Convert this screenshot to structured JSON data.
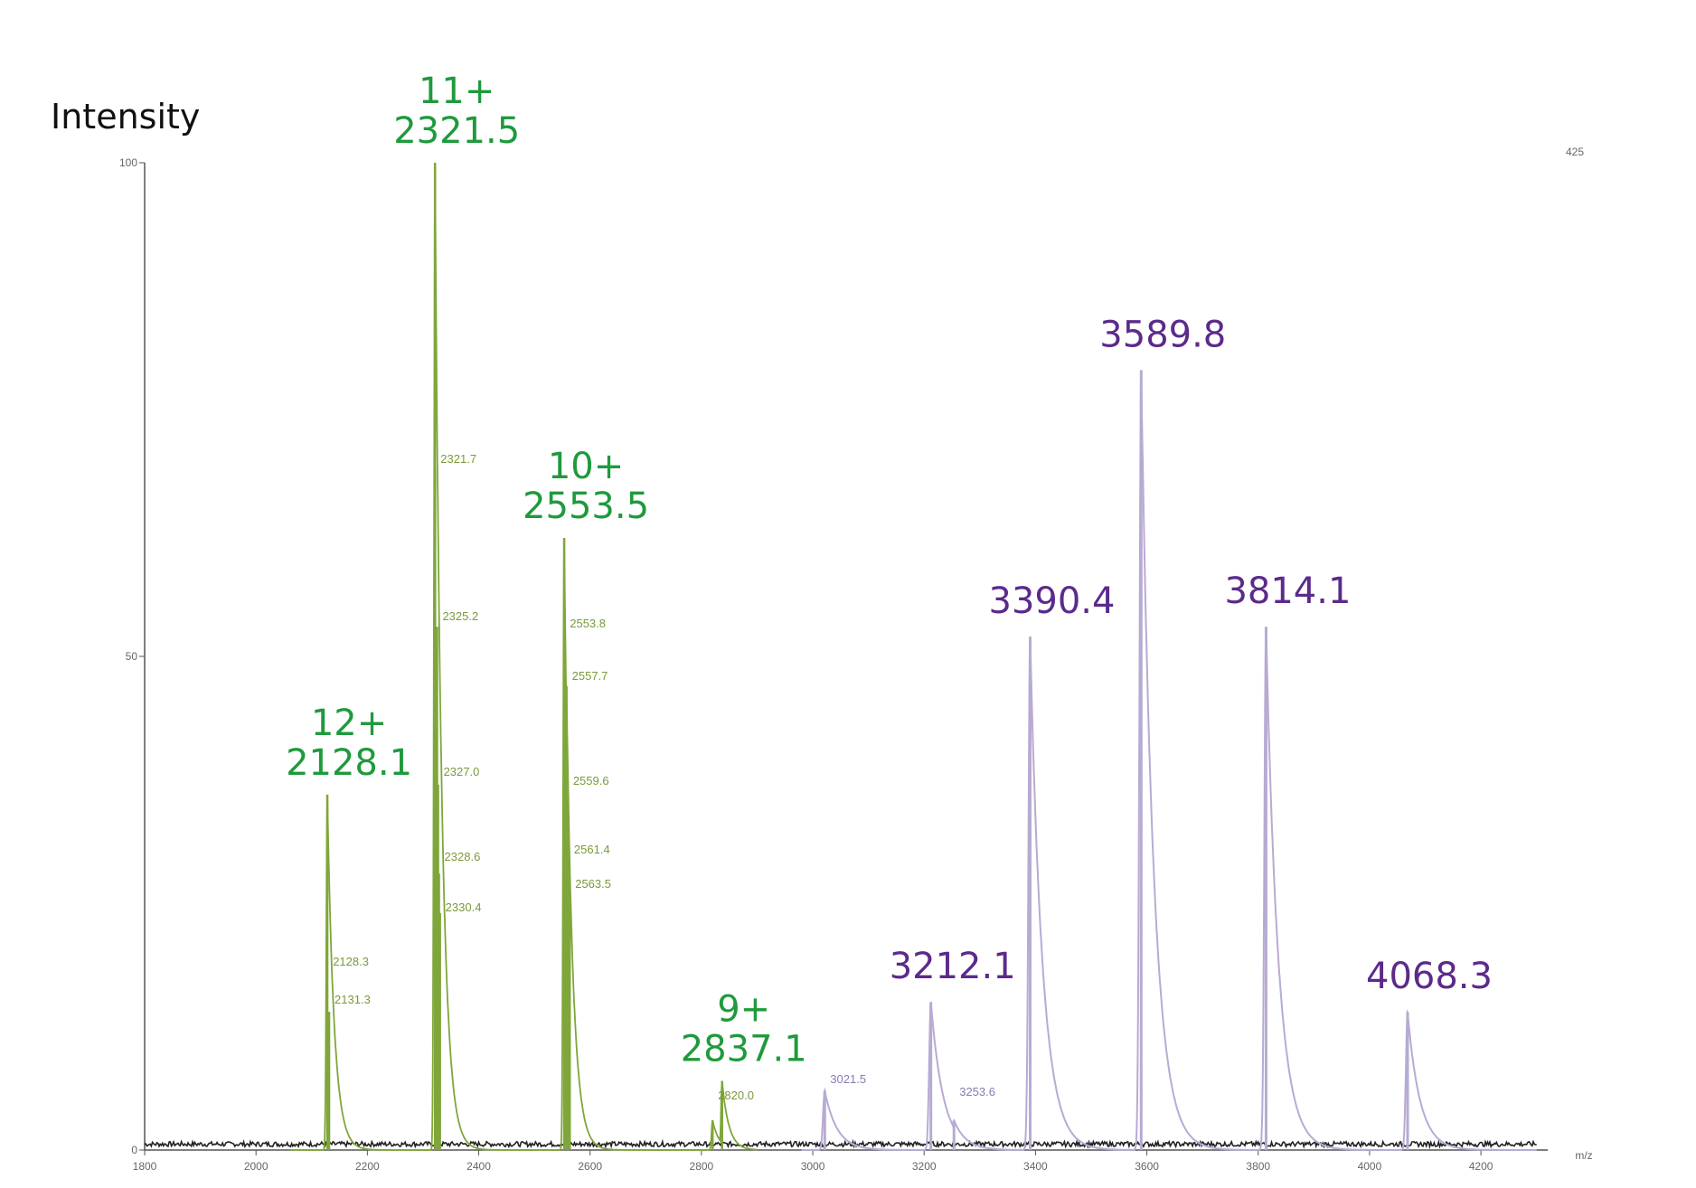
{
  "chart_data": {
    "type": "line",
    "ylabel": "Intensity",
    "x_unit_label": "m/z",
    "xlim": [
      1800,
      4320
    ],
    "ylim": [
      0,
      100
    ],
    "x_ticks": [
      1800,
      2000,
      2200,
      2400,
      2600,
      2800,
      3000,
      3200,
      3400,
      3600,
      3800,
      4000,
      4200
    ],
    "y_ticks": [
      0,
      50,
      100
    ],
    "top_right_label": "425",
    "colors": {
      "green_series": "#7fa63a",
      "purple_series": "#b7abd3",
      "baseline": "#222222",
      "green_text": "#1e9a3c",
      "purple_text": "#5b2a8c"
    },
    "series": [
      {
        "peaks": [
          {
            "x": 2128.1,
            "y": 36
          },
          {
            "x": 2131.3,
            "y": 14
          },
          {
            "x": 2321.5,
            "y": 100
          },
          {
            "x": 2321.7,
            "y": 69
          },
          {
            "x": 2325.2,
            "y": 53
          },
          {
            "x": 2327.0,
            "y": 37
          },
          {
            "x": 2328.6,
            "y": 28
          },
          {
            "x": 2330.4,
            "y": 24
          },
          {
            "x": 2553.5,
            "y": 62
          },
          {
            "x": 2553.8,
            "y": 52
          },
          {
            "x": 2557.7,
            "y": 47
          },
          {
            "x": 2559.6,
            "y": 36
          },
          {
            "x": 2561.4,
            "y": 30
          },
          {
            "x": 2563.5,
            "y": 26
          },
          {
            "x": 2820.0,
            "y": 3
          },
          {
            "x": 2837.1,
            "y": 7
          }
        ]
      },
      {
        "peaks": [
          {
            "x": 3021.5,
            "y": 6
          },
          {
            "x": 3212.1,
            "y": 15
          },
          {
            "x": 3253.6,
            "y": 3
          },
          {
            "x": 3390.4,
            "y": 52
          },
          {
            "x": 3589.8,
            "y": 79
          },
          {
            "x": 3814.1,
            "y": 53
          },
          {
            "x": 4068.3,
            "y": 14
          }
        ]
      }
    ],
    "annotations": [
      {
        "charge": "12+",
        "mz": "2128.1",
        "at": 2128.1,
        "color": "green"
      },
      {
        "charge": "11+",
        "mz": "2321.5",
        "at": 2321.5,
        "color": "green"
      },
      {
        "charge": "10+",
        "mz": "2553.5",
        "at": 2553.5,
        "color": "green"
      },
      {
        "charge": "9+",
        "mz": "2837.1",
        "at": 2837.1,
        "color": "green"
      },
      {
        "mz": "3212.1",
        "at": 3212.1,
        "color": "purple"
      },
      {
        "mz": "3390.4",
        "at": 3390.4,
        "color": "purple"
      },
      {
        "mz": "3589.8",
        "at": 3589.8,
        "color": "purple"
      },
      {
        "mz": "3814.1",
        "at": 3814.1,
        "color": "purple"
      },
      {
        "mz": "4068.3",
        "at": 4068.3,
        "color": "purple"
      }
    ],
    "peak_labels": [
      {
        "text": "2128.3",
        "at": 2128.3,
        "color": "green"
      },
      {
        "text": "2131.3",
        "at": 2131.3,
        "color": "green"
      },
      {
        "text": "2321.7",
        "at": 2321.7,
        "color": "green"
      },
      {
        "text": "2325.2",
        "at": 2325.2,
        "color": "green"
      },
      {
        "text": "2327.0",
        "at": 2327.0,
        "color": "green"
      },
      {
        "text": "2328.6",
        "at": 2328.6,
        "color": "green"
      },
      {
        "text": "2330.4",
        "at": 2330.4,
        "color": "green"
      },
      {
        "text": "2553.8",
        "at": 2553.8,
        "color": "green"
      },
      {
        "text": "2557.7",
        "at": 2557.7,
        "color": "green"
      },
      {
        "text": "2559.6",
        "at": 2559.6,
        "color": "green"
      },
      {
        "text": "2561.4",
        "at": 2561.4,
        "color": "green"
      },
      {
        "text": "2563.5",
        "at": 2563.5,
        "color": "green"
      },
      {
        "text": "2820.0",
        "at": 2820.0,
        "color": "green"
      },
      {
        "text": "3021.5",
        "at": 3021.5,
        "color": "purple"
      },
      {
        "text": "3253.6",
        "at": 3253.6,
        "color": "purple"
      }
    ]
  }
}
